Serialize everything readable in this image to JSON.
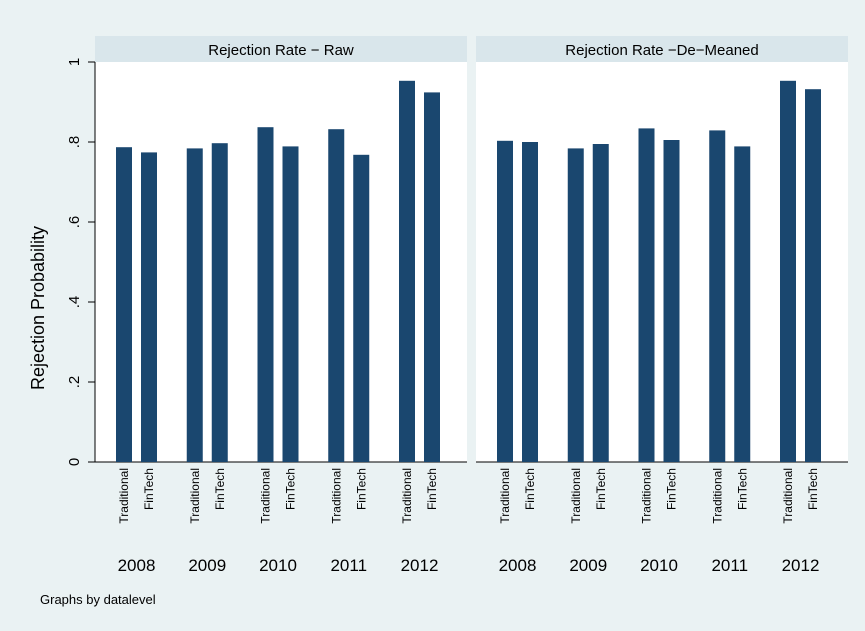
{
  "y_label": "Rejection Probability",
  "note": "Graphs by datalevel",
  "chart_data": [
    {
      "type": "bar",
      "title": "Rejection Rate − Raw",
      "categories": [
        "2008",
        "2009",
        "2010",
        "2011",
        "2012"
      ],
      "series": [
        {
          "name": "Traditional",
          "color": "#1a476f",
          "values": [
            0.787,
            0.784,
            0.837,
            0.832,
            0.953
          ]
        },
        {
          "name": "FinTech",
          "color": "#1a476f",
          "values": [
            0.774,
            0.797,
            0.789,
            0.768,
            0.924
          ]
        }
      ],
      "ylim": [
        0,
        1
      ],
      "yticks": [
        0,
        {
          "value": 0.2,
          "label": ".2"
        },
        {
          "value": 0.4,
          "label": ".4"
        },
        {
          "value": 0.6,
          "label": ".6"
        },
        {
          "value": 0.8,
          "label": ".8"
        },
        1
      ]
    },
    {
      "type": "bar",
      "title": "Rejection Rate −De−Meaned",
      "categories": [
        "2008",
        "2009",
        "2010",
        "2011",
        "2012"
      ],
      "series": [
        {
          "name": "Traditional",
          "color": "#1a476f",
          "values": [
            0.803,
            0.784,
            0.834,
            0.829,
            0.953
          ]
        },
        {
          "name": "FinTech",
          "color": "#1a476f",
          "values": [
            0.8,
            0.795,
            0.805,
            0.789,
            0.932
          ]
        }
      ],
      "ylim": [
        0,
        1
      ]
    }
  ]
}
